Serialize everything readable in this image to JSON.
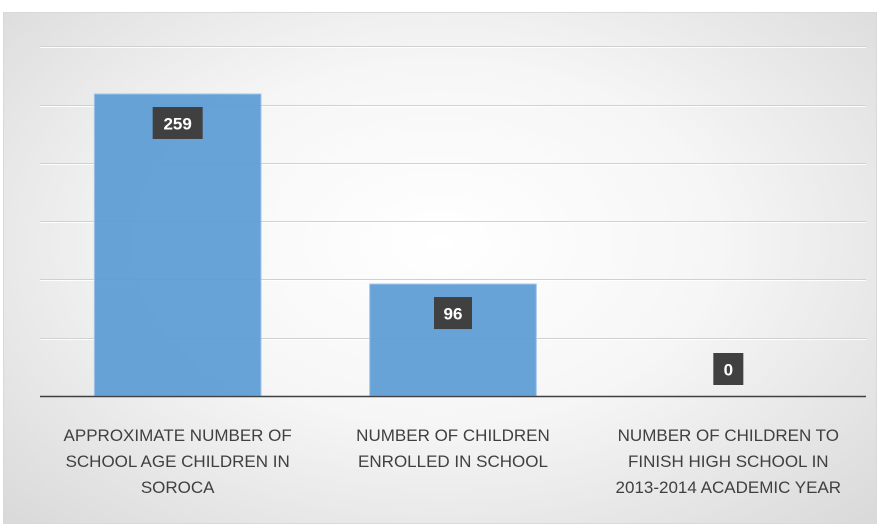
{
  "chart_data": {
    "type": "bar",
    "categories": [
      "APPROXIMATE NUMBER OF SCHOOL AGE CHILDREN IN SOROCA",
      "NUMBER OF CHILDREN ENROLLED IN SCHOOL",
      "NUMBER OF CHILDREN TO FINISH HIGH SCHOOL IN 2013-2014 ACADEMIC YEAR"
    ],
    "category_lines": [
      [
        "APPROXIMATE NUMBER OF",
        "SCHOOL AGE CHILDREN IN",
        "SOROCA"
      ],
      [
        "NUMBER OF CHILDREN",
        "ENROLLED IN SCHOOL"
      ],
      [
        "NUMBER OF CHILDREN TO",
        "FINISH HIGH SCHOOL IN",
        "2013-2014 ACADEMIC YEAR"
      ]
    ],
    "values": [
      259,
      96,
      0
    ],
    "data_labels": [
      "259",
      "96",
      "0"
    ],
    "ylim": [
      0,
      300
    ],
    "grid": true,
    "legend": "none",
    "colors": {
      "bar": "#5b9bd5",
      "label_box": "#404040",
      "label_text": "#ffffff",
      "axis_text": "#404040"
    }
  }
}
